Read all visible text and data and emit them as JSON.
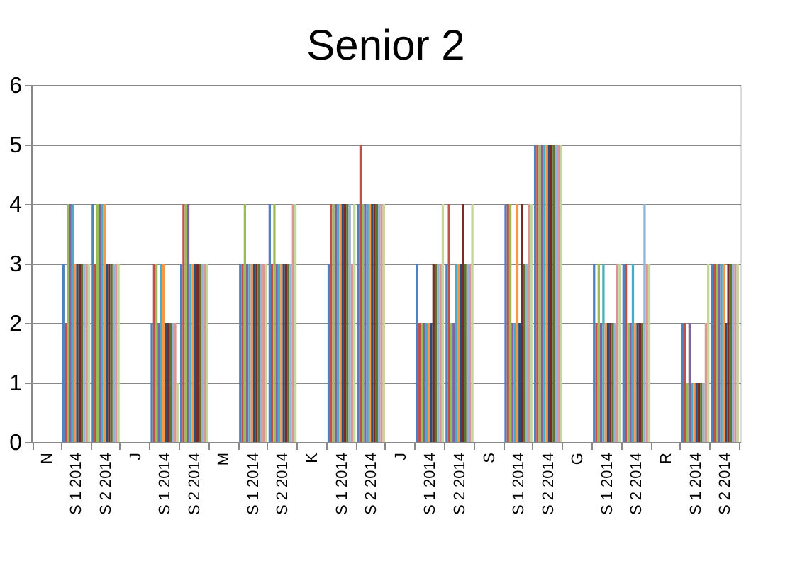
{
  "chart_data": {
    "type": "bar",
    "title": "Senior 2",
    "categories": [
      "N",
      "S 1 2014",
      "S 2 2014",
      "J",
      "S 1 2014",
      "S 2 2014",
      "M",
      "S 1 2014",
      "S 2 2014",
      "K",
      "S 1 2014",
      "S 2 2014",
      "J",
      "S 1 2014",
      "S 2 2014",
      "S",
      "S 1 2014",
      "S 2 2014",
      "G",
      "S 1 2014",
      "S 2 2014",
      "R",
      "S 1 2014",
      "S 2 2014"
    ],
    "series": [
      {
        "color": "#4f81bd",
        "values": [
          null,
          3,
          4,
          null,
          2,
          3,
          null,
          3,
          4,
          null,
          3,
          4,
          null,
          3,
          3,
          null,
          4,
          5,
          null,
          3,
          3,
          null,
          2,
          3
        ]
      },
      {
        "color": "#c0504d",
        "values": [
          null,
          2,
          3,
          null,
          3,
          4,
          null,
          3,
          3,
          null,
          4,
          5,
          null,
          2,
          4,
          null,
          4,
          5,
          null,
          2,
          3,
          null,
          2,
          3
        ]
      },
      {
        "color": "#9bbb59",
        "values": [
          null,
          4,
          4,
          null,
          3,
          4,
          null,
          4,
          4,
          null,
          4,
          4,
          null,
          2,
          2,
          null,
          4,
          5,
          null,
          3,
          2,
          null,
          1,
          3
        ]
      },
      {
        "color": "#8064a2",
        "values": [
          null,
          4,
          4,
          null,
          2,
          4,
          null,
          3,
          3,
          null,
          4,
          4,
          null,
          2,
          2,
          null,
          2,
          5,
          null,
          2,
          2,
          null,
          2,
          3
        ]
      },
      {
        "color": "#4bacc6",
        "values": [
          null,
          4,
          4,
          null,
          3,
          3,
          null,
          3,
          3,
          null,
          4,
          4,
          null,
          2,
          3,
          null,
          2,
          5,
          null,
          3,
          3,
          null,
          1,
          3
        ]
      },
      {
        "color": "#f79646",
        "values": [
          null,
          3,
          4,
          null,
          3,
          3,
          null,
          3,
          3,
          null,
          4,
          4,
          null,
          2,
          3,
          null,
          4,
          5,
          null,
          2,
          2,
          null,
          1,
          3
        ]
      },
      {
        "color": "#2c4d75",
        "values": [
          null,
          3,
          3,
          null,
          2,
          3,
          null,
          3,
          3,
          null,
          4,
          4,
          null,
          2,
          3,
          null,
          2,
          5,
          null,
          2,
          2,
          null,
          1,
          2
        ]
      },
      {
        "color": "#772c2a",
        "values": [
          null,
          3,
          3,
          null,
          2,
          3,
          null,
          3,
          3,
          null,
          4,
          4,
          null,
          3,
          4,
          null,
          4,
          5,
          null,
          2,
          2,
          null,
          1,
          3
        ]
      },
      {
        "color": "#5f7530",
        "values": [
          null,
          3,
          3,
          null,
          2,
          3,
          null,
          3,
          3,
          null,
          4,
          4,
          null,
          3,
          3,
          null,
          3,
          5,
          null,
          2,
          2,
          null,
          1,
          3
        ]
      },
      {
        "color": "#95b3d7",
        "values": [
          null,
          3,
          3,
          null,
          2,
          3,
          null,
          3,
          3,
          null,
          4,
          4,
          null,
          3,
          3,
          null,
          3,
          5,
          null,
          2,
          4,
          null,
          1,
          3
        ]
      },
      {
        "color": "#d99694",
        "values": [
          null,
          3,
          3,
          null,
          2,
          3,
          null,
          3,
          4,
          null,
          3,
          4,
          null,
          3,
          3,
          null,
          4,
          5,
          null,
          3,
          3,
          null,
          2,
          3
        ]
      },
      {
        "color": "#c3d69b",
        "values": [
          null,
          3,
          3,
          null,
          1,
          3,
          null,
          3,
          4,
          null,
          4,
          4,
          null,
          4,
          4,
          null,
          4,
          5,
          null,
          3,
          3,
          null,
          3,
          3
        ]
      }
    ],
    "ylim": [
      0,
      6
    ],
    "yticks": [
      0,
      1,
      2,
      3,
      4,
      5,
      6
    ],
    "grid": "y",
    "legend": false
  }
}
